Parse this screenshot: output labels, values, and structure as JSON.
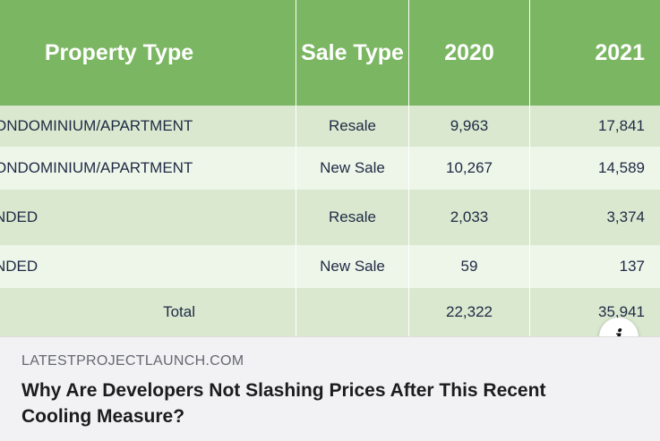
{
  "table": {
    "headers": [
      "Property Type",
      "Sale Type",
      "2020",
      "2021"
    ],
    "rows": [
      {
        "property_type": "ONDOMINIUM/APARTMENT",
        "sale_type": "Resale",
        "y2020": "9,963",
        "y2021": "17,841"
      },
      {
        "property_type": "ONDOMINIUM/APARTMENT",
        "sale_type": "New Sale",
        "y2020": "10,267",
        "y2021": "14,589"
      },
      {
        "property_type": "NDED",
        "sale_type": "Resale",
        "y2020": "2,033",
        "y2021": "3,374"
      },
      {
        "property_type": "NDED",
        "sale_type": "New Sale",
        "y2020": "59",
        "y2021": "137"
      }
    ],
    "total": {
      "label": "Total",
      "y2020": "22,322",
      "y2021": "35,941"
    }
  },
  "info_button": {
    "icon": "info-icon",
    "glyph": "i"
  },
  "footer": {
    "source": "LATESTPROJECTLAUNCH.COM",
    "headline": "Why Are Developers Not Slashing Prices After This Recent Cooling Measure?"
  },
  "colors": {
    "header_green": "#7bb662",
    "row_light": "#eef5e9",
    "row_mid": "#d9e8cf"
  }
}
